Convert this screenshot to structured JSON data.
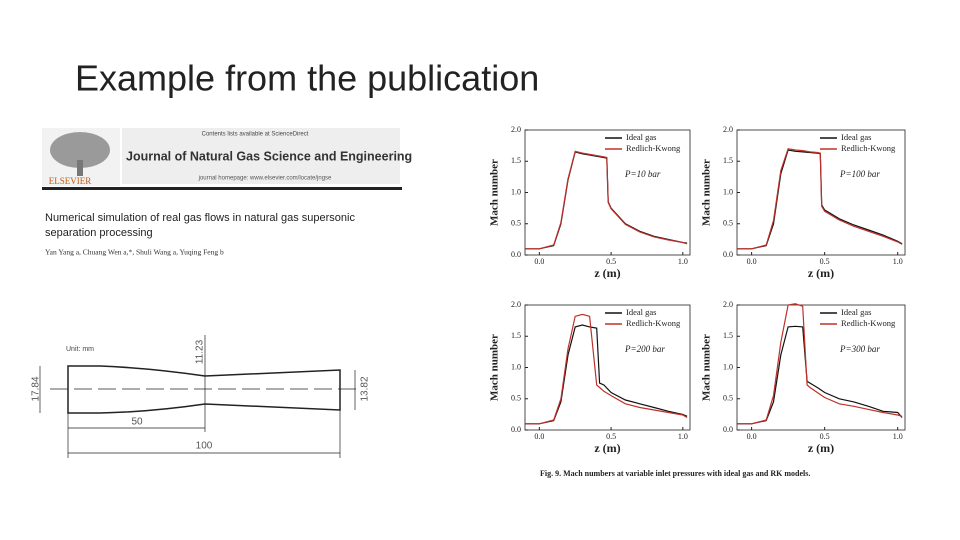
{
  "slide_title": "Example from the publication",
  "paper": {
    "contents_line": "Contents lists available at ScienceDirect",
    "publisher": "ELSEVIER",
    "journal": "Journal of Natural Gas Science and Engineering",
    "homepage": "journal homepage: www.elsevier.com/locate/jngse",
    "title_lines": [
      "Numerical simulation of real gas flows in natural gas supersonic",
      "separation processing"
    ],
    "authors": "Yan Yang a, Chuang Wen a,*, Shuli Wang a, Yuqing Feng b"
  },
  "drawing": {
    "unit": "Unit: mm",
    "inlet": "17.84",
    "throat": "11.23",
    "outlet": "13.82",
    "converging": "50",
    "total": "100"
  },
  "caption": "Fig. 9. Mach numbers at variable inlet pressures with ideal gas and RK models.",
  "chart_data": [
    {
      "type": "line",
      "annotation": "P=10 bar",
      "x_label": "z (m)",
      "y_label": "Mach number",
      "x": [
        -0.1,
        0,
        0.1,
        0.15,
        0.2,
        0.25,
        0.3,
        0.35,
        0.4,
        0.45,
        0.47,
        0.48,
        0.5,
        0.6,
        0.7,
        0.8,
        0.9,
        1.0,
        1.03
      ],
      "series": [
        {
          "name": "Ideal gas",
          "color": "#111111",
          "values": [
            0.1,
            0.1,
            0.15,
            0.5,
            1.2,
            1.65,
            1.62,
            1.6,
            1.58,
            1.56,
            1.55,
            0.85,
            0.75,
            0.5,
            0.38,
            0.3,
            0.25,
            0.2,
            0.19
          ]
        },
        {
          "name": "Redlich-Kwong",
          "color": "#c0302a",
          "values": [
            0.1,
            0.1,
            0.16,
            0.52,
            1.22,
            1.66,
            1.63,
            1.61,
            1.59,
            1.57,
            1.56,
            0.84,
            0.74,
            0.49,
            0.37,
            0.29,
            0.24,
            0.2,
            0.18
          ]
        }
      ],
      "xlim": [
        -0.1,
        1.05
      ],
      "ylim": [
        0,
        2
      ],
      "xticks": [
        {
          "value": 0,
          "label": "0.0"
        },
        0.5,
        {
          "value": 1,
          "label": "1.0"
        }
      ],
      "yticks": [
        {
          "value": 0,
          "label": "0.0"
        },
        0.5,
        {
          "value": 1,
          "label": "1.0"
        },
        1.5,
        {
          "value": 2,
          "label": "2.0"
        }
      ]
    },
    {
      "type": "line",
      "annotation": "P=100 bar",
      "x_label": "z (m)",
      "y_label": "Mach number",
      "x": [
        -0.1,
        0,
        0.1,
        0.15,
        0.2,
        0.25,
        0.3,
        0.35,
        0.4,
        0.45,
        0.47,
        0.48,
        0.5,
        0.6,
        0.7,
        0.8,
        0.9,
        1.0,
        1.03
      ],
      "series": [
        {
          "name": "Ideal gas",
          "color": "#111111",
          "values": [
            0.1,
            0.1,
            0.15,
            0.5,
            1.3,
            1.68,
            1.66,
            1.65,
            1.64,
            1.63,
            1.62,
            0.8,
            0.72,
            0.58,
            0.48,
            0.4,
            0.32,
            0.22,
            0.18
          ]
        },
        {
          "name": "Redlich-Kwong",
          "color": "#c0302a",
          "values": [
            0.1,
            0.1,
            0.16,
            0.55,
            1.35,
            1.7,
            1.68,
            1.67,
            1.65,
            1.64,
            1.63,
            0.78,
            0.7,
            0.56,
            0.46,
            0.38,
            0.3,
            0.21,
            0.17
          ]
        }
      ],
      "xlim": [
        -0.1,
        1.05
      ],
      "ylim": [
        0,
        2
      ],
      "xticks": [
        {
          "value": 0,
          "label": "0.0"
        },
        0.5,
        {
          "value": 1,
          "label": "1.0"
        }
      ],
      "yticks": [
        {
          "value": 0,
          "label": "0.0"
        },
        0.5,
        {
          "value": 1,
          "label": "1.0"
        },
        1.5,
        {
          "value": 2,
          "label": "2.0"
        }
      ]
    },
    {
      "type": "line",
      "annotation": "P=200 bar",
      "x_label": "z (m)",
      "y_label": "Mach number",
      "x": [
        -0.1,
        0,
        0.1,
        0.15,
        0.2,
        0.25,
        0.3,
        0.35,
        0.4,
        0.42,
        0.45,
        0.5,
        0.6,
        0.7,
        0.8,
        0.9,
        1.0,
        1.03
      ],
      "series": [
        {
          "name": "Ideal gas",
          "color": "#111111",
          "values": [
            0.1,
            0.1,
            0.15,
            0.45,
            1.2,
            1.65,
            1.68,
            1.65,
            1.63,
            0.75,
            0.72,
            0.6,
            0.48,
            0.42,
            0.36,
            0.3,
            0.25,
            0.22
          ]
        },
        {
          "name": "Redlich-Kwong",
          "color": "#c0302a",
          "values": [
            0.1,
            0.1,
            0.16,
            0.5,
            1.3,
            1.82,
            1.85,
            1.82,
            0.72,
            0.68,
            0.62,
            0.55,
            0.42,
            0.36,
            0.32,
            0.28,
            0.24,
            0.2
          ]
        }
      ],
      "xlim": [
        -0.1,
        1.05
      ],
      "ylim": [
        0,
        2
      ],
      "xticks": [
        {
          "value": 0,
          "label": "0.0"
        },
        0.5,
        {
          "value": 1,
          "label": "1.0"
        }
      ],
      "yticks": [
        {
          "value": 0,
          "label": "0.0"
        },
        0.5,
        {
          "value": 1,
          "label": "1.0"
        },
        1.5,
        {
          "value": 2,
          "label": "2.0"
        }
      ]
    },
    {
      "type": "line",
      "annotation": "P=300 bar",
      "x_label": "z (m)",
      "y_label": "Mach number",
      "x": [
        -0.1,
        0,
        0.1,
        0.15,
        0.2,
        0.25,
        0.3,
        0.35,
        0.38,
        0.4,
        0.45,
        0.5,
        0.6,
        0.7,
        0.8,
        0.9,
        1.0,
        1.03
      ],
      "series": [
        {
          "name": "Ideal gas",
          "color": "#111111",
          "values": [
            0.1,
            0.1,
            0.15,
            0.45,
            1.2,
            1.65,
            1.66,
            1.65,
            0.78,
            0.75,
            0.68,
            0.6,
            0.5,
            0.45,
            0.38,
            0.3,
            0.28,
            0.2
          ]
        },
        {
          "name": "Redlich-Kwong",
          "color": "#c0302a",
          "values": [
            0.1,
            0.1,
            0.16,
            0.55,
            1.4,
            2.0,
            2.02,
            1.98,
            0.72,
            0.68,
            0.6,
            0.52,
            0.42,
            0.38,
            0.33,
            0.28,
            0.24,
            0.22
          ]
        }
      ],
      "xlim": [
        -0.1,
        1.05
      ],
      "ylim": [
        0,
        2
      ],
      "xticks": [
        {
          "value": 0,
          "label": "0.0"
        },
        0.5,
        {
          "value": 1,
          "label": "1.0"
        }
      ],
      "yticks": [
        {
          "value": 0,
          "label": "0.0"
        },
        0.5,
        {
          "value": 1,
          "label": "1.0"
        },
        1.5,
        {
          "value": 2,
          "label": "2.0"
        }
      ]
    }
  ]
}
